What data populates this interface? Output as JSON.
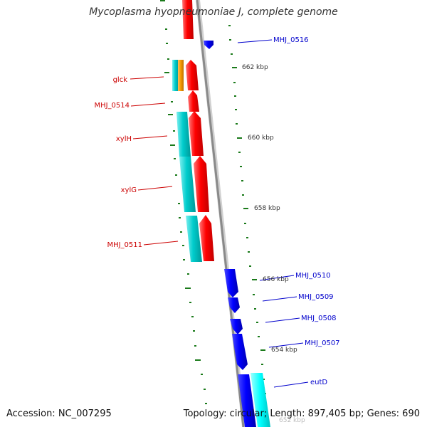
{
  "title": "Mycoplasma hyopneumoniae J, complete genome",
  "footer": {
    "accession": "Accession: NC_007295",
    "topology": "Topology: circular; Length: 897,405 bp; Genes: 690"
  },
  "colors": {
    "forward_cds": "#ff0000",
    "reverse_cds": "#0000ff",
    "rna_feature": "#00c8c8",
    "orange_feature": "#f59a00",
    "backbone": "#909090",
    "gc_tick": "#1a7a1a",
    "forward_label": "#cc0000",
    "reverse_label": "#0000cc",
    "kbp_label": "#333333"
  },
  "scale_labels": [
    "662 kbp",
    "660 kbp",
    "658 kbp",
    "656 kbp",
    "654 kbp",
    "652 kbp"
  ],
  "forward_genes": [
    "glck",
    "MHJ_0514",
    "xylH",
    "xylG",
    "MHJ_0511"
  ],
  "reverse_genes": [
    "MHJ_0516",
    "MHJ_0510",
    "MHJ_0509",
    "MHJ_0508",
    "MHJ_0507",
    "eutD"
  ]
}
